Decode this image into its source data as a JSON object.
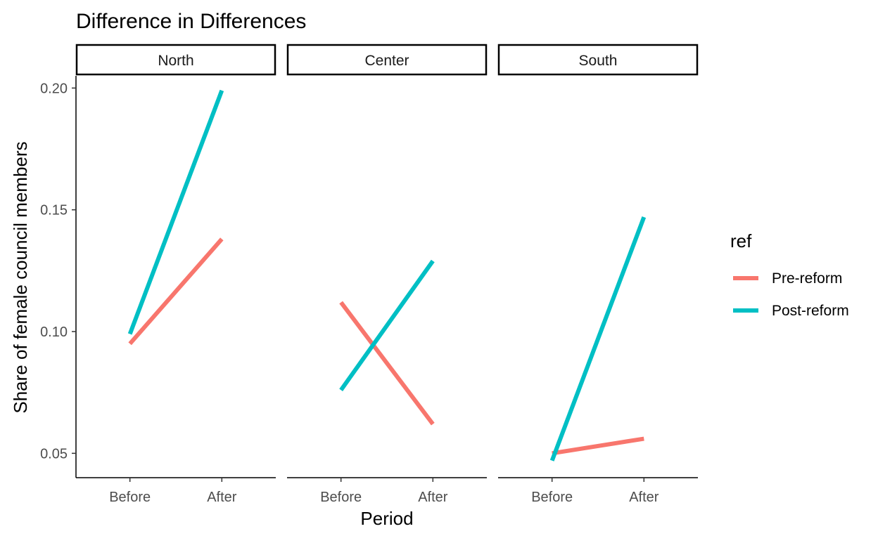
{
  "chart_data": {
    "type": "line",
    "title": "Difference in Differences",
    "xlabel": "Period",
    "ylabel": "Share of female council members",
    "categories": [
      "Before",
      "After"
    ],
    "ylim": [
      0.04,
      0.205
    ],
    "yticks": [
      {
        "value": 0.05,
        "label": "0.05"
      },
      {
        "value": 0.1,
        "label": "0.10"
      },
      {
        "value": 0.15,
        "label": "0.15"
      },
      {
        "value": 0.2,
        "label": "0.20"
      }
    ],
    "grid": false,
    "legend": {
      "title": "ref",
      "placement": "right",
      "entries": [
        {
          "name": "Pre-reform",
          "color": "#F8766D"
        },
        {
          "name": "Post-reform",
          "color": "#00BFC4"
        }
      ]
    },
    "facets": [
      {
        "label": "North",
        "series": [
          {
            "name": "Pre-reform",
            "values": [
              0.095,
              0.138
            ]
          },
          {
            "name": "Post-reform",
            "values": [
              0.099,
              0.199
            ]
          }
        ]
      },
      {
        "label": "Center",
        "series": [
          {
            "name": "Pre-reform",
            "values": [
              0.112,
              0.062
            ]
          },
          {
            "name": "Post-reform",
            "values": [
              0.076,
              0.129
            ]
          }
        ]
      },
      {
        "label": "South",
        "series": [
          {
            "name": "Pre-reform",
            "values": [
              0.05,
              0.056
            ]
          },
          {
            "name": "Post-reform",
            "values": [
              0.047,
              0.147
            ]
          }
        ]
      }
    ]
  }
}
